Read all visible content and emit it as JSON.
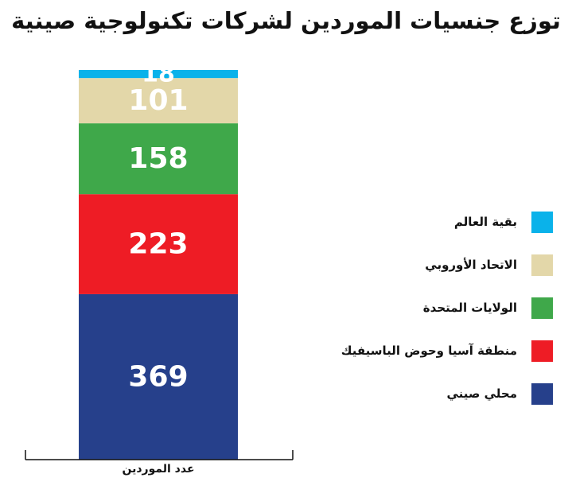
{
  "title": "توزع جنسيات الموردين لشركات تكنولوجية صينية",
  "chart_data": {
    "type": "bar",
    "stacked": true,
    "categories": [
      "عدد الموردين"
    ],
    "xlabel": "عدد الموردين",
    "ylabel": "",
    "ylim": [
      0,
      869
    ],
    "grid": false,
    "legend_position": "right",
    "series": [
      {
        "name": "محلي صيني",
        "values": [
          369
        ],
        "color": "#26408b"
      },
      {
        "name": "منطقة آسيا وحوض الباسيفيك",
        "values": [
          223
        ],
        "color": "#ee1c25"
      },
      {
        "name": "الولايات المتحدة",
        "values": [
          158
        ],
        "color": "#3fa84a"
      },
      {
        "name": "الاتحاد الأوروبي",
        "values": [
          101
        ],
        "color": "#e3d7a9"
      },
      {
        "name": "بقية العالم",
        "values": [
          18
        ],
        "color": "#0ab2ea"
      }
    ]
  },
  "legend": [
    {
      "label": "بقية العالم",
      "color": "#0ab2ea"
    },
    {
      "label": "الاتحاد الأوروبي",
      "color": "#e3d7a9"
    },
    {
      "label": "الولايات المتحدة",
      "color": "#3fa84a"
    },
    {
      "label": "منطقة آسيا وحوض الباسيفيك",
      "color": "#ee1c25"
    },
    {
      "label": "محلي صيني",
      "color": "#26408b"
    }
  ]
}
